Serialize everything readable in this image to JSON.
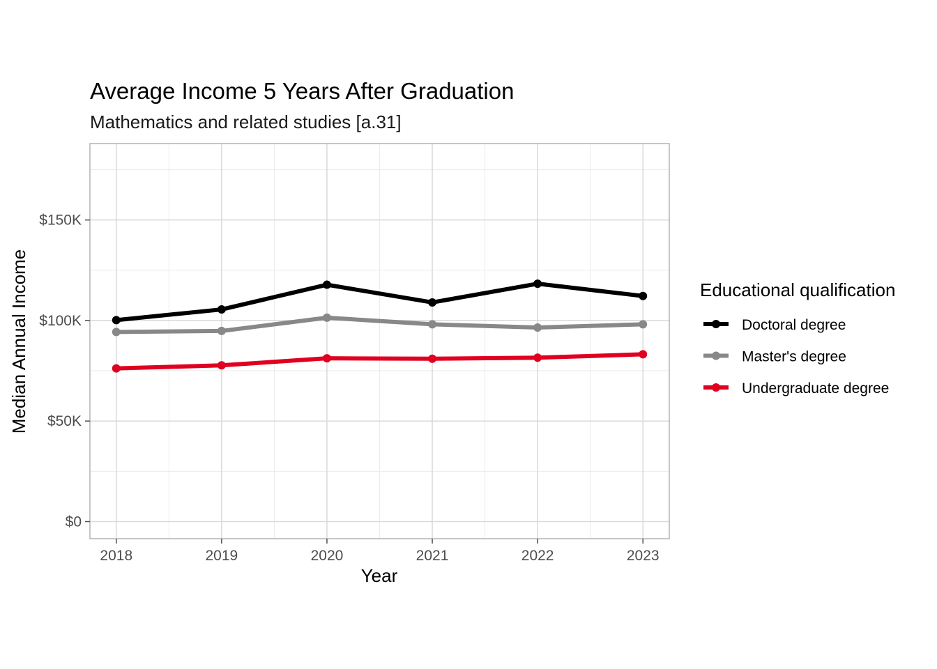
{
  "chart_data": {
    "type": "line",
    "title": "Average Income 5 Years After Graduation",
    "subtitle": "Mathematics and related studies [a.31]",
    "xlabel": "Year",
    "ylabel": "Median Annual Income",
    "x": [
      2018,
      2019,
      2020,
      2021,
      2022,
      2023
    ],
    "x_tick_labels": [
      "2018",
      "2019",
      "2020",
      "2021",
      "2022",
      "2023"
    ],
    "xlim": [
      2017.75,
      2023.25
    ],
    "ylim": [
      -8500,
      188000
    ],
    "y_ticks": [
      0,
      50000,
      100000,
      150000
    ],
    "y_tick_labels": [
      "$0",
      "$50K",
      "$100K",
      "$150K"
    ],
    "grid": true,
    "legend_title": "Educational qualification",
    "legend_position": "right",
    "series": [
      {
        "name": "Doctoral degree",
        "color": "#000000",
        "values": [
          100200,
          105500,
          117800,
          109000,
          118300,
          112200
        ]
      },
      {
        "name": "Master's degree",
        "color": "#888888",
        "values": [
          94300,
          94800,
          101400,
          98100,
          96500,
          98100
        ]
      },
      {
        "name": "Undergraduate degree",
        "color": "#e00020",
        "values": [
          76200,
          77700,
          81200,
          81000,
          81500,
          83200
        ]
      }
    ]
  }
}
